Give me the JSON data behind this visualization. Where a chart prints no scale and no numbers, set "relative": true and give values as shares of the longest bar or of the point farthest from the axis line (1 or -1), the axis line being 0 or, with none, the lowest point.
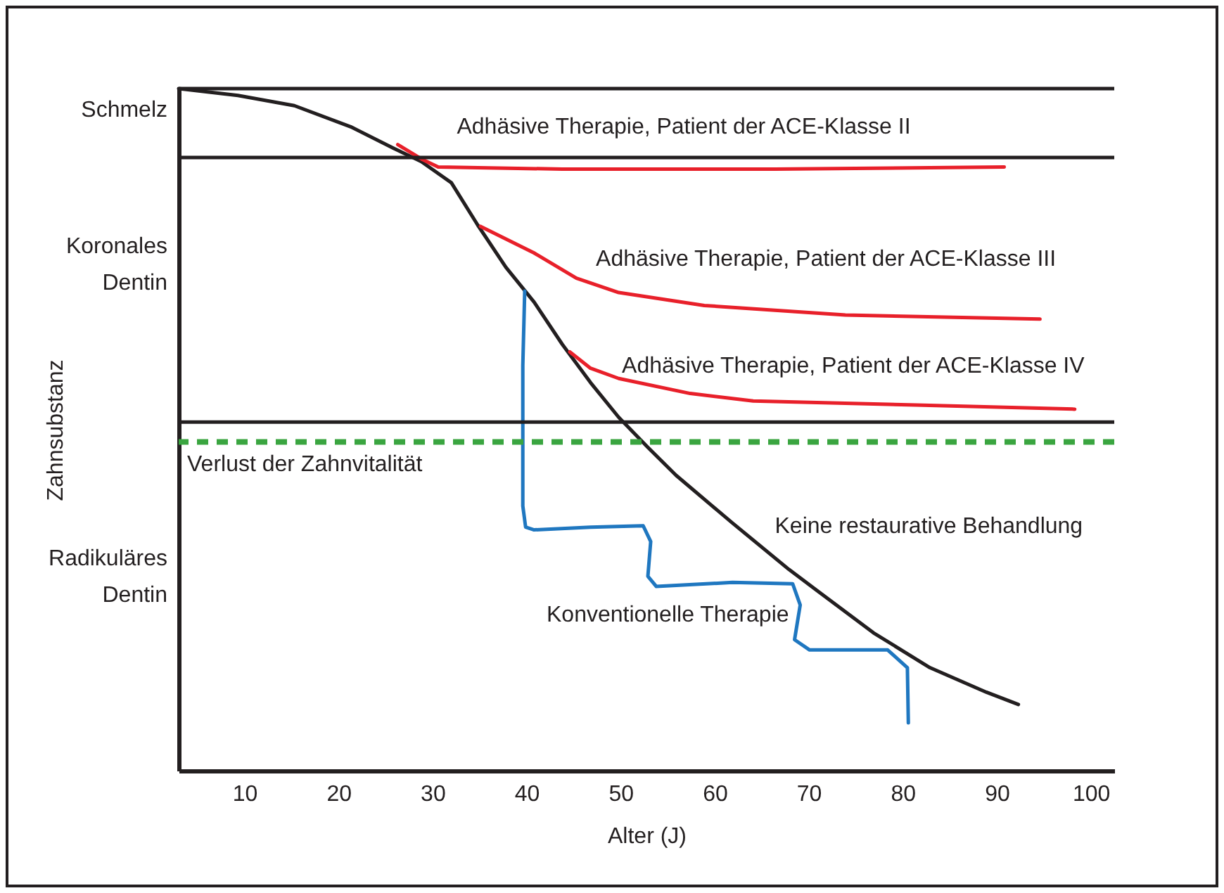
{
  "chart_data": {
    "type": "line",
    "relative": true,
    "xlabel": "Alter (J)",
    "ylabel": "Zahnsubstanz",
    "xlim": [
      3,
      102.5
    ],
    "xticks": [
      10,
      20,
      30,
      40,
      50,
      60,
      70,
      80,
      90,
      100
    ],
    "grid": false,
    "line_style": "solid",
    "marker": "none",
    "series": [
      {
        "name": "Keine restaurative Behandlung",
        "color": "#231f20",
        "x": [
          3,
          9.3,
          15.3,
          21.3,
          25.8,
          28.8,
          32.0,
          34.8,
          37.8,
          40.8,
          43.8,
          46.8,
          49.8,
          52.9,
          55.9,
          61.9,
          67.9,
          70.9,
          76.9,
          82.9,
          88.9,
          92.3
        ],
        "values": [
          1.0,
          0.99,
          0.975,
          0.944,
          0.913,
          0.893,
          0.862,
          0.8,
          0.738,
          0.687,
          0.625,
          0.569,
          0.518,
          0.474,
          0.433,
          0.363,
          0.295,
          0.264,
          0.202,
          0.151,
          0.115,
          0.097
        ]
      },
      {
        "name": "Adhäsive Therapie, Patient der ACE-Klasse II",
        "color": "#e8202a",
        "x": [
          26.3,
          28.8,
          30.6,
          43.8,
          66.4,
          90.8
        ],
        "values": [
          0.918,
          0.897,
          0.885,
          0.882,
          0.882,
          0.885
        ]
      },
      {
        "name": "Adhäsive Therapie, Patient der ACE-Klasse III",
        "color": "#e8202a",
        "x": [
          35.1,
          40.8,
          45.3,
          49.8,
          58.9,
          73.9,
          94.6
        ],
        "values": [
          0.798,
          0.759,
          0.722,
          0.701,
          0.682,
          0.668,
          0.662
        ]
      },
      {
        "name": "Adhäsive Therapie, Patient der ACE-Klasse IV",
        "color": "#e8202a",
        "x": [
          44.6,
          46.8,
          49.8,
          57.4,
          64.1,
          81.4,
          98.3
        ],
        "values": [
          0.614,
          0.59,
          0.575,
          0.553,
          0.542,
          0.536,
          0.53
        ]
      },
      {
        "name": "Konventionelle Therapie",
        "color": "#1f77c0",
        "x": [
          39.8,
          39.6,
          39.6,
          39.9,
          40.8,
          46.8,
          52.4,
          53.2,
          52.9,
          53.8,
          61.9,
          68.3,
          69.1,
          68.5,
          70.1,
          78.4,
          80.5,
          80.6
        ],
        "values": [
          0.703,
          0.594,
          0.388,
          0.357,
          0.353,
          0.357,
          0.359,
          0.336,
          0.285,
          0.27,
          0.276,
          0.274,
          0.243,
          0.192,
          0.177,
          0.177,
          0.151,
          0.07
        ]
      }
    ],
    "ref_lines": [
      {
        "axis": "y",
        "value": 1,
        "color": "#231f20"
      },
      {
        "axis": "y",
        "value": 0.899,
        "color": "#231f20"
      },
      {
        "axis": "y",
        "value": 0.511,
        "color": "#231f20"
      },
      {
        "axis": "y",
        "value": 0.482,
        "label": "Verlust der Zahnvitalität",
        "color": "#3aa540",
        "line_style": "dashed"
      }
    ],
    "annotations": [
      "Schmelz",
      "Koronales Dentin",
      "Radikuläres Dentin"
    ]
  }
}
